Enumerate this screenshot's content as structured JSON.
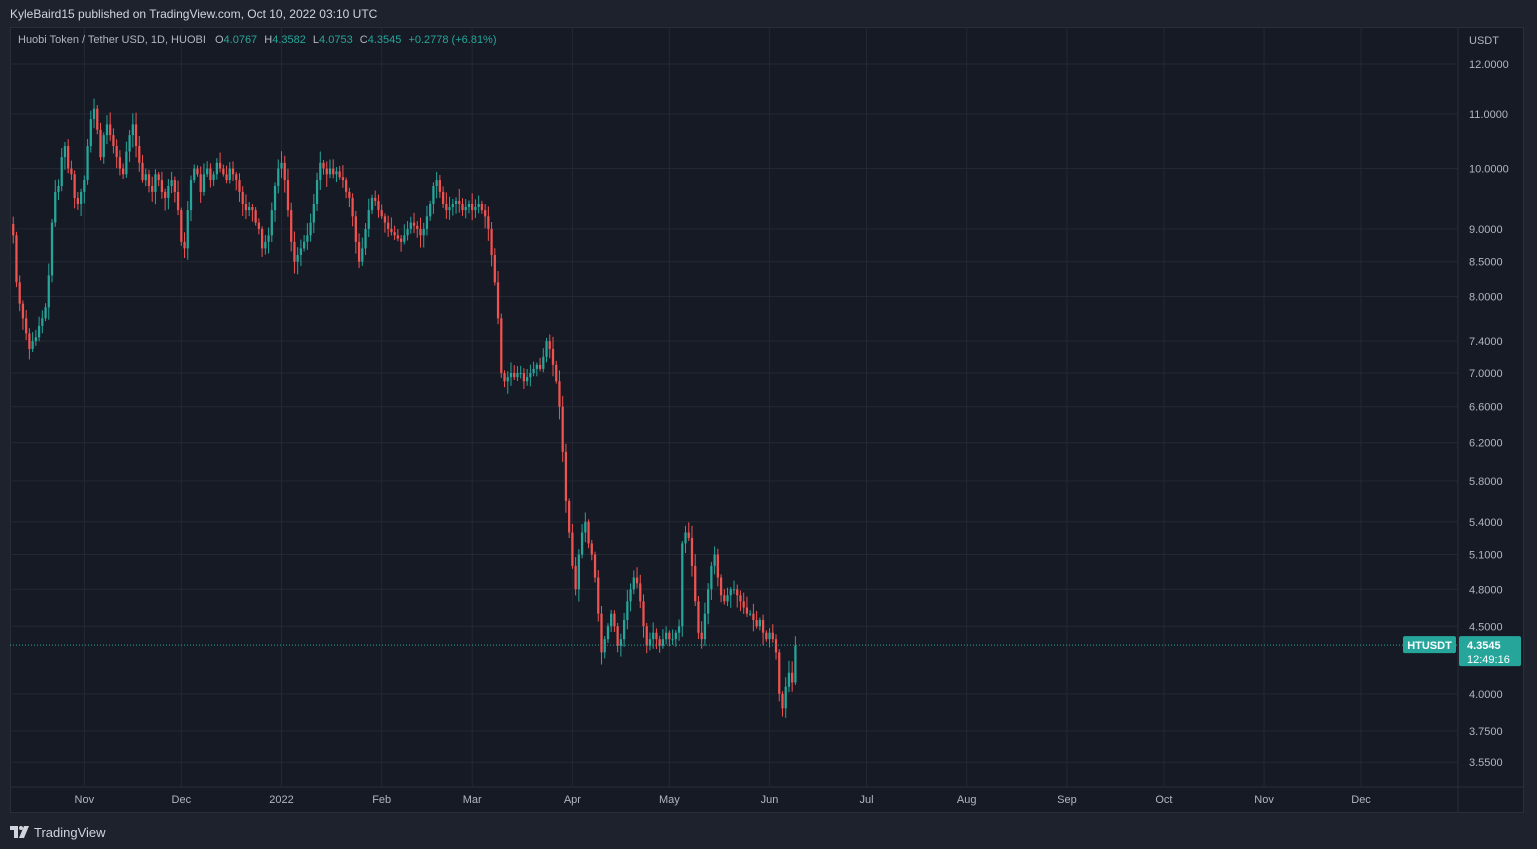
{
  "banner": {
    "text": "KyleBaird15 published on TradingView.com, Oct 10, 2022 03:10 UTC"
  },
  "legend": {
    "symbol": "Huobi Token / Tether USD, 1D, HUOBI",
    "open_label": "O",
    "open": "4.0767",
    "high_label": "H",
    "high": "4.3582",
    "low_label": "L",
    "low": "4.0753",
    "close_label": "C",
    "close": "4.3545",
    "change": "+0.2778 (+6.81%)"
  },
  "footer": {
    "brand": "TradingView",
    "logo_icon": "tradingview-logo-icon"
  },
  "colors": {
    "up": "#26a69a",
    "down": "#ef5350",
    "grid": "#242833",
    "axis_text": "#b2b5be",
    "background": "#161a25",
    "price_tag": "#26a69a"
  },
  "chart_data": {
    "type": "candlestick",
    "symbol": "HTUSDT",
    "currency_label": "USDT",
    "y_scale": "log",
    "ylim": [
      3.4,
      12.8
    ],
    "y_ticks": [
      12.0,
      11.0,
      10.0,
      9.0,
      8.5,
      8.0,
      7.4,
      7.0,
      6.6,
      6.2,
      5.8,
      5.4,
      5.1,
      4.8,
      4.5,
      4.0,
      3.75,
      3.55
    ],
    "y_tick_labels": [
      "12.0000",
      "11.0000",
      "10.0000",
      "9.0000",
      "8.5000",
      "8.0000",
      "7.4000",
      "7.0000",
      "6.6000",
      "6.2000",
      "5.8000",
      "5.4000",
      "5.1000",
      "4.8000",
      "4.5000",
      "4.0000",
      "3.7500",
      "3.5500"
    ],
    "x_range": [
      "2021-10-09",
      "2022-12-31"
    ],
    "x_ticks": [
      {
        "date": "2021-11-01",
        "label": "Nov"
      },
      {
        "date": "2021-12-01",
        "label": "Dec"
      },
      {
        "date": "2022-01-01",
        "label": "2022"
      },
      {
        "date": "2022-02-01",
        "label": "Feb"
      },
      {
        "date": "2022-03-01",
        "label": "Mar"
      },
      {
        "date": "2022-04-01",
        "label": "Apr"
      },
      {
        "date": "2022-05-01",
        "label": "May"
      },
      {
        "date": "2022-06-01",
        "label": "Jun"
      },
      {
        "date": "2022-07-01",
        "label": "Jul"
      },
      {
        "date": "2022-08-01",
        "label": "Aug"
      },
      {
        "date": "2022-09-01",
        "label": "Sep"
      },
      {
        "date": "2022-10-01",
        "label": "Oct"
      },
      {
        "date": "2022-11-01",
        "label": "Nov"
      },
      {
        "date": "2022-12-01",
        "label": "Dec"
      }
    ],
    "last_price": 4.3545,
    "last_price_label": "4.3545",
    "countdown": "12:49:16",
    "close_series": {
      "start_date": "2021-10-10",
      "interval": "1D",
      "values": [
        8.9,
        8.2,
        7.9,
        7.7,
        7.5,
        7.3,
        7.4,
        7.45,
        7.6,
        7.7,
        7.85,
        8.3,
        9.1,
        9.6,
        9.7,
        10.2,
        10.4,
        10.0,
        9.9,
        9.5,
        9.4,
        9.6,
        9.8,
        10.4,
        10.9,
        11.1,
        10.7,
        10.2,
        10.6,
        10.8,
        10.6,
        10.4,
        10.2,
        10.0,
        9.9,
        10.3,
        10.6,
        10.8,
        10.4,
        10.1,
        9.8,
        9.9,
        9.7,
        9.6,
        9.9,
        9.8,
        9.6,
        9.5,
        9.7,
        9.8,
        9.6,
        9.3,
        8.8,
        8.7,
        9.3,
        9.8,
        10.0,
        9.9,
        9.6,
        9.9,
        10.0,
        9.8,
        9.9,
        10.1,
        10.0,
        9.9,
        9.8,
        10.0,
        9.9,
        9.8,
        9.6,
        9.4,
        9.3,
        9.35,
        9.3,
        9.1,
        9.0,
        8.7,
        8.8,
        8.9,
        9.3,
        9.7,
        10.0,
        10.1,
        9.8,
        9.3,
        8.8,
        8.5,
        8.6,
        8.7,
        8.8,
        8.9,
        9.1,
        9.4,
        9.8,
        10.1,
        10.0,
        9.9,
        10.0,
        9.9,
        9.95,
        9.85,
        9.8,
        9.6,
        9.5,
        9.2,
        8.8,
        8.5,
        8.7,
        9.0,
        9.3,
        9.5,
        9.45,
        9.3,
        9.2,
        9.1,
        9.0,
        8.95,
        8.9,
        8.85,
        8.8,
        8.9,
        9.0,
        9.1,
        9.05,
        9.0,
        8.9,
        9.0,
        9.2,
        9.4,
        9.7,
        9.8,
        9.6,
        9.4,
        9.3,
        9.35,
        9.4,
        9.45,
        9.4,
        9.3,
        9.35,
        9.4,
        9.3,
        9.35,
        9.4,
        9.3,
        9.2,
        9.0,
        8.6,
        8.2,
        7.7,
        7.0,
        6.9,
        6.95,
        7.0,
        6.95,
        7.0,
        7.0,
        6.9,
        6.95,
        7.0,
        7.05,
        7.1,
        7.05,
        7.2,
        7.4,
        7.3,
        7.1,
        6.9,
        6.6,
        6.1,
        5.6,
        5.3,
        5.0,
        4.8,
        5.1,
        5.3,
        5.4,
        5.2,
        5.1,
        4.9,
        4.6,
        4.3,
        4.4,
        4.5,
        4.6,
        4.5,
        4.35,
        4.4,
        4.55,
        4.7,
        4.8,
        4.9,
        4.85,
        4.7,
        4.5,
        4.35,
        4.4,
        4.45,
        4.4,
        4.35,
        4.4,
        4.45,
        4.4,
        4.4,
        4.45,
        4.5,
        5.2,
        5.3,
        5.25,
        5.0,
        4.7,
        4.45,
        4.4,
        4.6,
        4.8,
        5.0,
        5.1,
        4.9,
        4.75,
        4.7,
        4.75,
        4.8,
        4.8,
        4.75,
        4.7,
        4.65,
        4.6,
        4.6,
        4.55,
        4.5,
        4.55,
        4.45,
        4.4,
        4.45,
        4.4,
        4.3,
        4.0,
        3.9,
        4.05,
        4.15,
        4.08,
        4.35
      ]
    }
  }
}
